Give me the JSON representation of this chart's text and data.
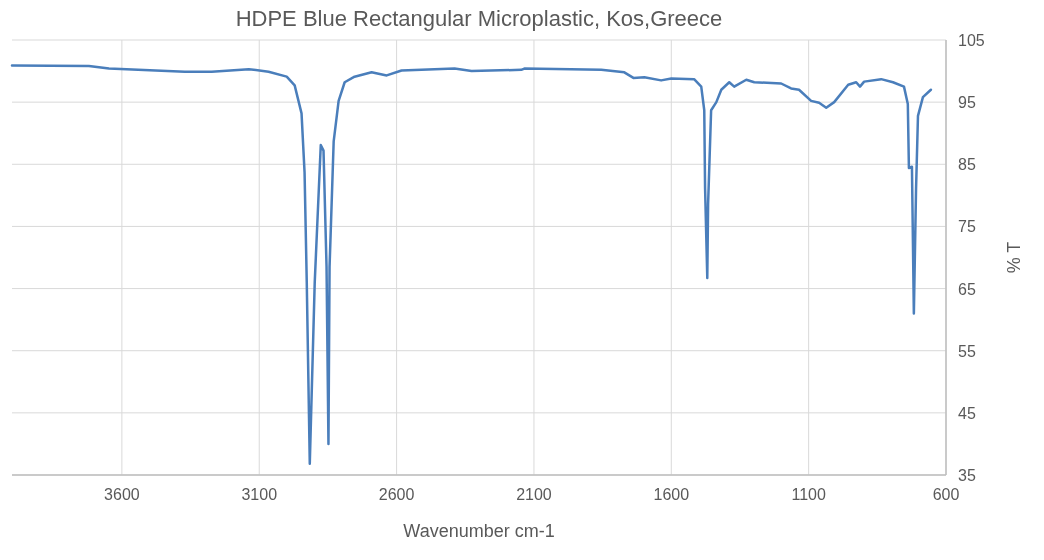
{
  "chart_data": {
    "type": "line",
    "title": "HDPE Blue Rectangular Microplastic, Kos,Greece",
    "xlabel": "Wavenumber cm-1",
    "ylabel": "% T",
    "x": [
      4000,
      3720,
      3647,
      3371,
      3273,
      3138,
      3066,
      3000,
      2971,
      2946,
      2935,
      2927,
      2916,
      2898,
      2876,
      2866,
      2855,
      2848,
      2844,
      2829,
      2811,
      2789,
      2753,
      2691,
      2636,
      2582,
      2389,
      2327,
      2146,
      2135,
      1855,
      1771,
      1738,
      1698,
      1637,
      1600,
      1517,
      1491,
      1480,
      1477,
      1469,
      1466,
      1455,
      1436,
      1418,
      1389,
      1371,
      1327,
      1298,
      1200,
      1164,
      1135,
      1091,
      1062,
      1036,
      1007,
      956,
      927,
      913,
      898,
      836,
      793,
      753,
      739,
      735,
      724,
      717,
      709,
      702,
      684,
      655
    ],
    "series": [
      {
        "color": "#4a7ebb",
        "values": [
          100.9,
          100.8,
          100.4,
          99.9,
          99.9,
          100.3,
          99.9,
          99.1,
          97.7,
          93.2,
          83.7,
          66,
          36.8,
          66,
          88.1,
          87.2,
          68.5,
          40,
          68.5,
          88.7,
          95.2,
          98.2,
          99.1,
          99.8,
          99.3,
          100.1,
          100.4,
          100,
          100.2,
          100.4,
          100.2,
          99.8,
          98.9,
          99,
          98.5,
          98.8,
          98.7,
          97.5,
          93.7,
          81.1,
          66.7,
          78.6,
          93.7,
          95,
          97,
          98.2,
          97.5,
          98.6,
          98.2,
          98,
          97.2,
          97,
          95.2,
          94.9,
          94.1,
          95,
          97.8,
          98.2,
          97.5,
          98.3,
          98.7,
          98.2,
          97.5,
          94.7,
          84.4,
          84.6,
          61,
          81.1,
          92.8,
          95.8,
          97
        ]
      }
    ],
    "xlim": [
      4000,
      600
    ],
    "xticks": [
      3600,
      3100,
      2600,
      2100,
      1600,
      1100,
      600
    ],
    "ylim": [
      35,
      105
    ],
    "yticks": [
      35,
      45,
      55,
      65,
      75,
      85,
      95,
      105
    ],
    "grid": true,
    "marker": "none",
    "line_style": "solid"
  }
}
